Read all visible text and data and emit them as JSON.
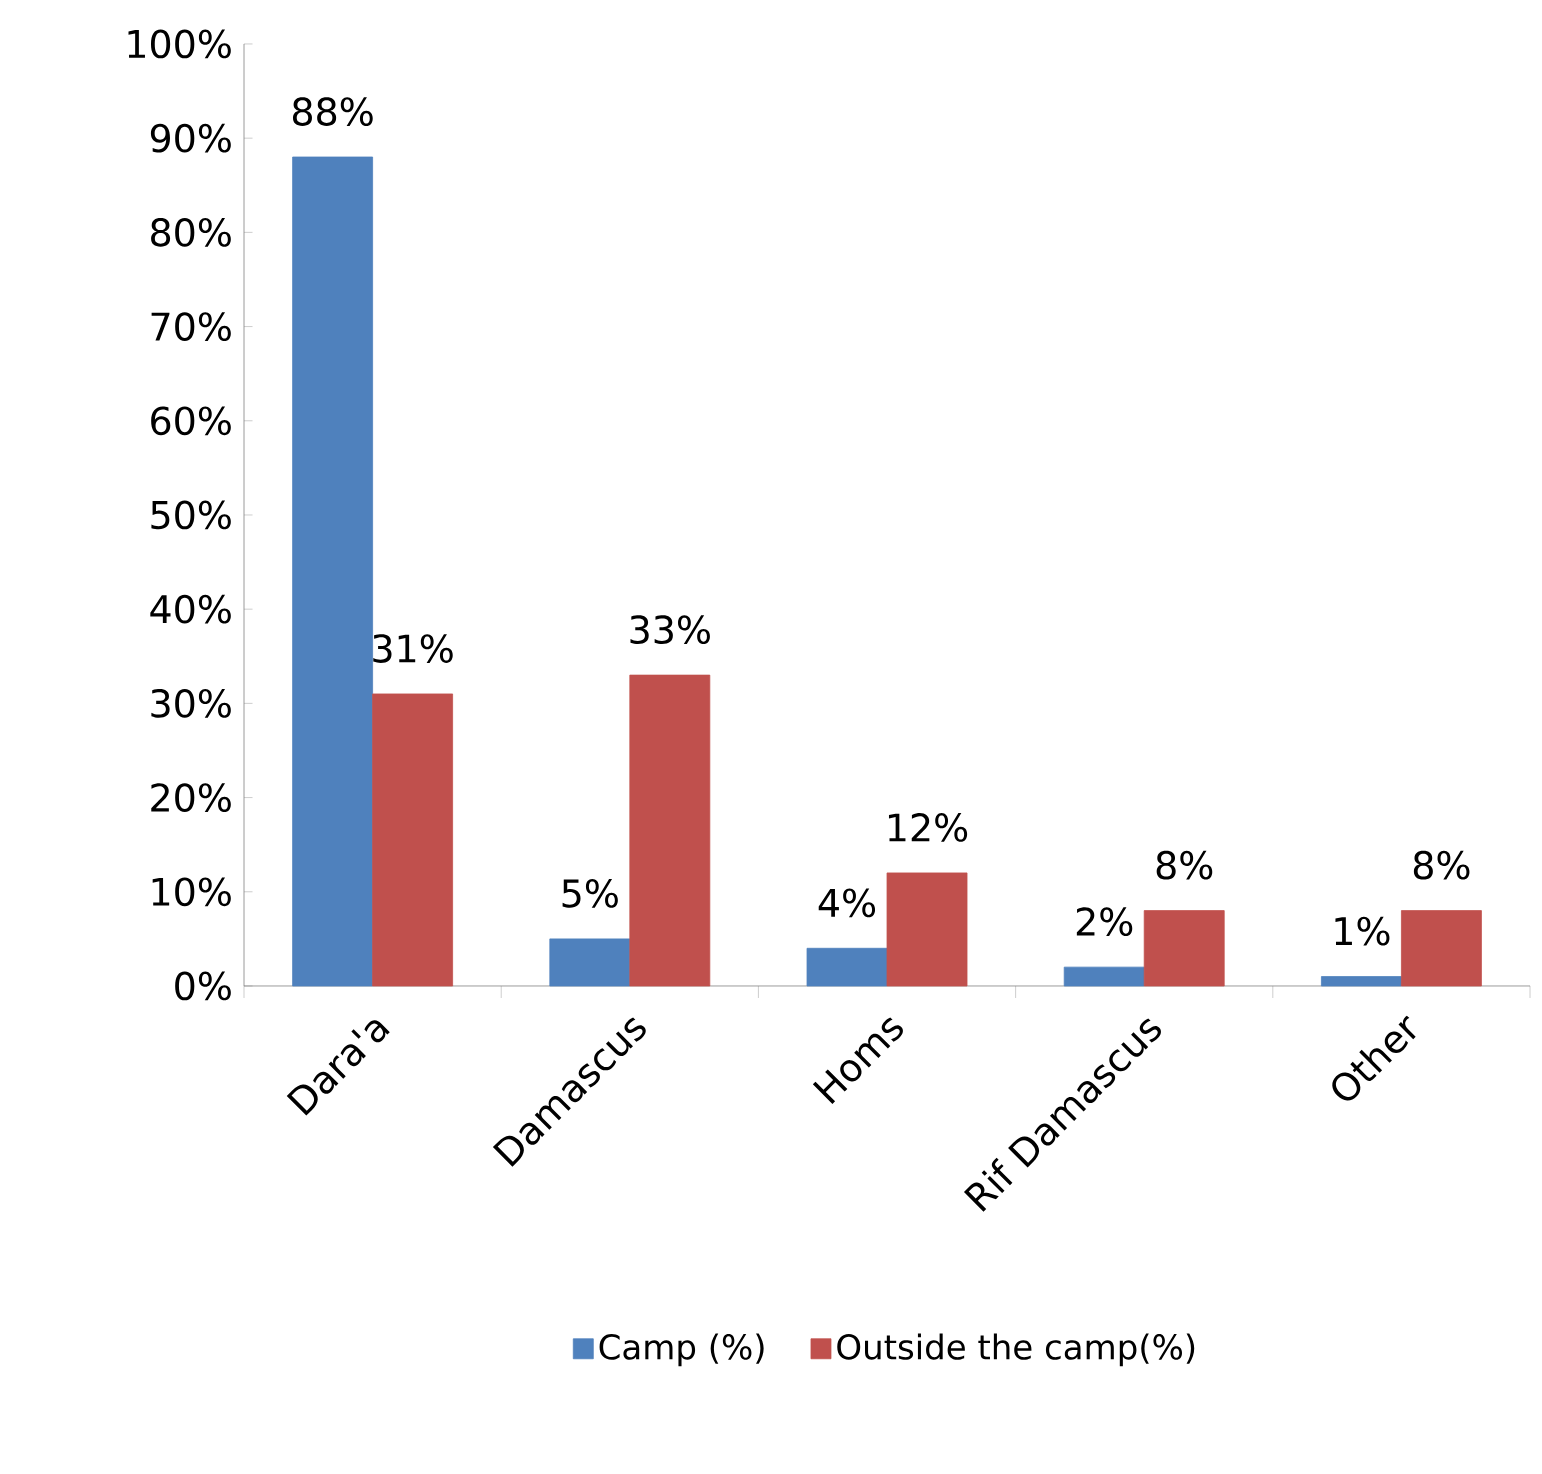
{
  "chart_data": {
    "type": "bar",
    "categories": [
      "Dara'a",
      "Damascus",
      "Homs",
      "Rif Damascus",
      "Other"
    ],
    "series": [
      {
        "name": "Camp (%)",
        "color": "#4f81bd",
        "values": [
          88,
          5,
          4,
          2,
          1
        ],
        "value_labels": [
          "88%",
          "5%",
          "4%",
          "2%",
          "1%"
        ]
      },
      {
        "name": "Outside the camp(%)",
        "color": "#c0504d",
        "values": [
          31,
          33,
          12,
          8,
          8
        ],
        "value_labels": [
          "31%",
          "33%",
          "12%",
          "8%",
          "8%"
        ]
      }
    ],
    "ylim": [
      0,
      100
    ],
    "yticks": [
      {
        "value": 0,
        "label": "0%"
      },
      {
        "value": 10,
        "label": "10%"
      },
      {
        "value": 20,
        "label": "20%"
      },
      {
        "value": 30,
        "label": "30%"
      },
      {
        "value": 40,
        "label": "40%"
      },
      {
        "value": 50,
        "label": "50%"
      },
      {
        "value": 60,
        "label": "60%"
      },
      {
        "value": 70,
        "label": "70%"
      },
      {
        "value": 80,
        "label": "80%"
      },
      {
        "value": 90,
        "label": "90%"
      },
      {
        "value": 100,
        "label": "100%"
      }
    ],
    "grid": false,
    "legend": "bottom"
  }
}
